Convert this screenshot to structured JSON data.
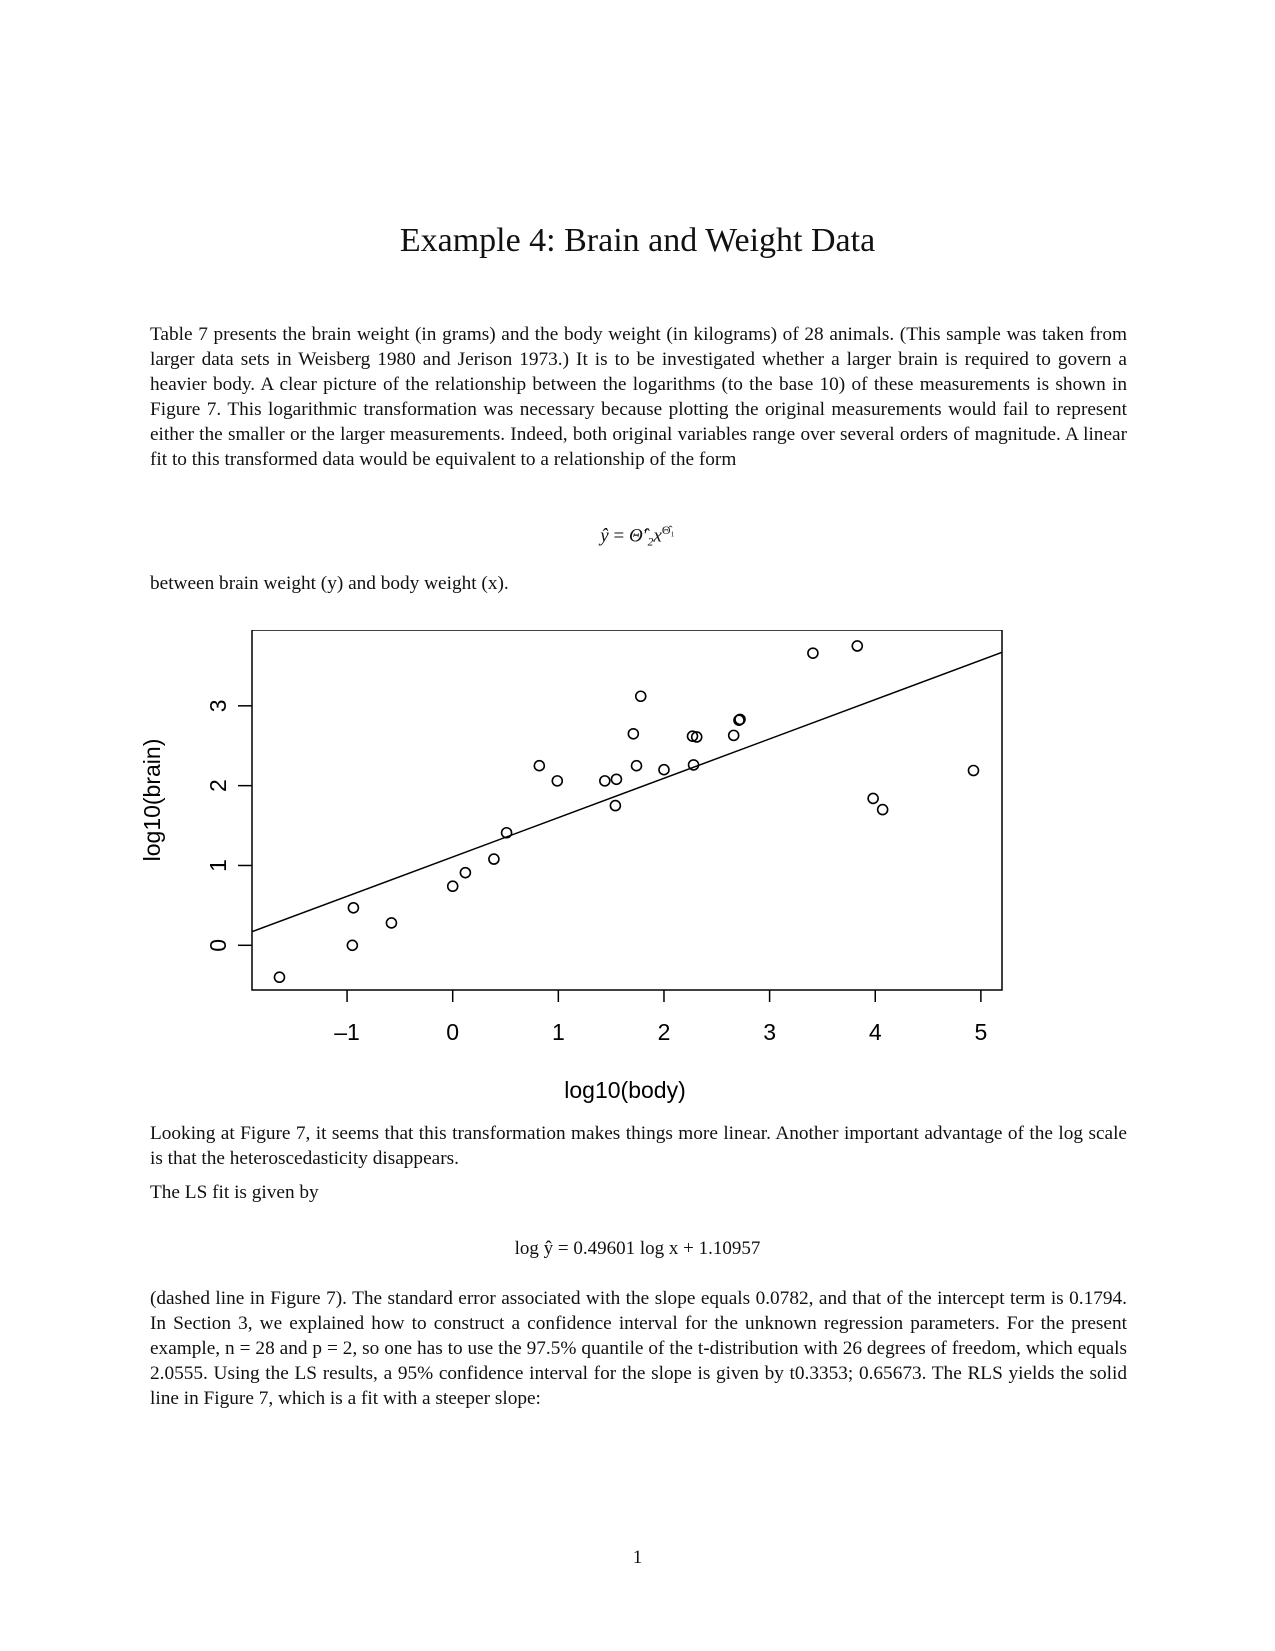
{
  "title": "Example 4: Brain and Weight Data",
  "para1": "Table 7 presents the brain weight (in grams) and the body weight (in kilograms) of 28 animals. (This sample was taken from larger data sets in Weisberg 1980 and Jerison 1973.) It is to be investigated whether a larger brain is required to govern a heavier body. A clear picture of the relationship between the logarithms (to the base 10) of these measurements is shown in Figure 7. This logarithmic transformation was necessary because plotting the original measurements would fail to represent either the smaller or the larger measurements. Indeed, both original variables range over several orders of magnitude. A linear fit to this transformed data would be equivalent to a relationship of the form",
  "eq1": {
    "lhs": "ŷ",
    "eq": " = ",
    "rhs": "Θ̂′₂x",
    "sup": "Θ̂₁"
  },
  "para2": "between brain weight (y) and body weight (x).",
  "para3": "Looking at Figure 7, it seems that this transformation makes things more linear. Another important advantage of the log scale is that the heteroscedasticity disappears.",
  "para4": "The LS fit is given by",
  "eq2": "log ŷ = 0.49601 log x + 1.10957",
  "para5": "(dashed line in Figure 7). The standard error associated with the slope equals 0.0782, and that of the intercept term is 0.1794. In Section 3, we explained how to construct a confidence interval for the unknown regression parameters. For the present example, n = 28 and p = 2, so one has to use the 97.5% quantile of the t-distribution with 26 degrees of freedom, which equals 2.0555. Using the LS results, a 95% confidence interval for the slope is given by t0.3353; 0.65673. The RLS yields the solid line in Figure 7, which is a fit with a steeper slope:",
  "page_number": "1",
  "chart_data": {
    "type": "scatter",
    "xlabel": "log10(body)",
    "ylabel": "log10(brain)",
    "xlim": [
      -1.9,
      5.2
    ],
    "ylim": [
      -0.56,
      3.95
    ],
    "xticks": [
      -1,
      0,
      1,
      2,
      3,
      4,
      5
    ],
    "xtick_labels": [
      "–1",
      "0",
      "1",
      "2",
      "3",
      "4",
      "5"
    ],
    "yticks": [
      0,
      1,
      2,
      3
    ],
    "ytick_labels": [
      "0",
      "1",
      "2",
      "3"
    ],
    "grid": false,
    "points": [
      {
        "x": -1.64,
        "y": -0.4
      },
      {
        "x": -0.94,
        "y": 0.47
      },
      {
        "x": -0.95,
        "y": 0.0
      },
      {
        "x": -0.58,
        "y": 0.28
      },
      {
        "x": 0.0,
        "y": 0.74
      },
      {
        "x": 0.12,
        "y": 0.91
      },
      {
        "x": 0.39,
        "y": 1.08
      },
      {
        "x": 0.51,
        "y": 1.41
      },
      {
        "x": 0.82,
        "y": 2.25
      },
      {
        "x": 0.99,
        "y": 2.06
      },
      {
        "x": 1.44,
        "y": 2.06
      },
      {
        "x": 1.55,
        "y": 2.08
      },
      {
        "x": 1.54,
        "y": 1.75
      },
      {
        "x": 1.71,
        "y": 2.65
      },
      {
        "x": 1.78,
        "y": 3.12
      },
      {
        "x": 1.74,
        "y": 2.25
      },
      {
        "x": 2.0,
        "y": 2.2
      },
      {
        "x": 2.27,
        "y": 2.62
      },
      {
        "x": 2.31,
        "y": 2.61
      },
      {
        "x": 2.28,
        "y": 2.26
      },
      {
        "x": 2.66,
        "y": 2.63
      },
      {
        "x": 2.71,
        "y": 2.82
      },
      {
        "x": 2.72,
        "y": 2.83
      },
      {
        "x": 3.41,
        "y": 3.66
      },
      {
        "x": 3.83,
        "y": 3.75
      },
      {
        "x": 3.98,
        "y": 1.84
      },
      {
        "x": 4.07,
        "y": 1.7
      },
      {
        "x": 4.93,
        "y": 2.19
      }
    ],
    "fit_line": {
      "style": "solid",
      "x": [
        -1.9,
        5.2
      ],
      "y": [
        0.17,
        3.67
      ]
    }
  }
}
